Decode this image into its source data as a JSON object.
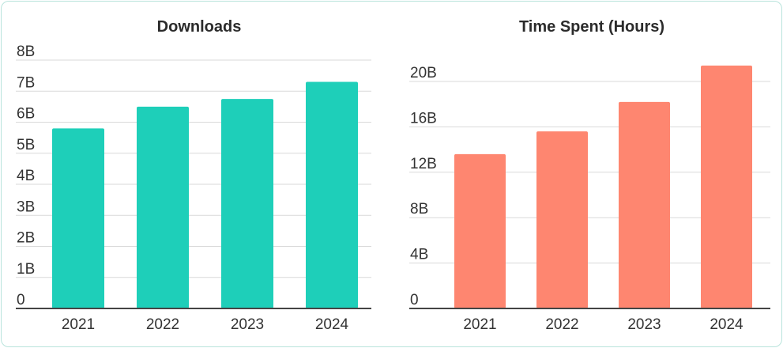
{
  "chart_data": [
    {
      "type": "bar",
      "title": "Downloads",
      "categories": [
        "2021",
        "2022",
        "2023",
        "2024"
      ],
      "values": [
        5.8,
        6.5,
        6.75,
        7.3
      ],
      "ylim": [
        0,
        8
      ],
      "yticks": [
        0,
        1,
        2,
        3,
        4,
        5,
        6,
        7,
        8
      ],
      "ytick_labels": [
        "0",
        "1B",
        "2B",
        "3B",
        "4B",
        "5B",
        "6B",
        "7B",
        "8B"
      ],
      "color": "#1ecfb9",
      "grid": true
    },
    {
      "type": "bar",
      "title": "Time Spent (Hours)",
      "categories": [
        "2021",
        "2022",
        "2023",
        "2024"
      ],
      "values": [
        13.6,
        15.6,
        18.2,
        21.4
      ],
      "ylim": [
        0,
        22
      ],
      "yticks": [
        0,
        4,
        8,
        12,
        16,
        20
      ],
      "ytick_labels": [
        "0",
        "4B",
        "8B",
        "12B",
        "16B",
        "20B"
      ],
      "color": "#fe8670",
      "grid": true
    }
  ]
}
